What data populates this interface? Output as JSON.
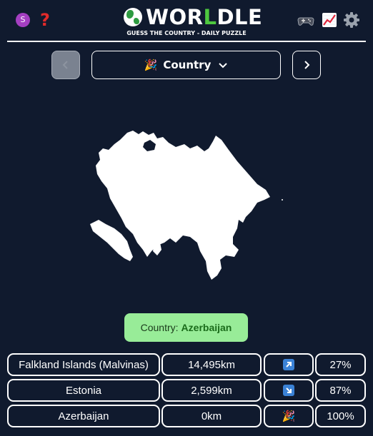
{
  "header": {
    "avatar_letter": "S",
    "help_symbol": "?",
    "logo": {
      "before": "WOR",
      "highlight": "L",
      "after": "DLE"
    },
    "tagline": "GUESS THE COUNTRY - DAILY PUZZLE",
    "icons": [
      "games-icon",
      "stats-icon",
      "settings-icon"
    ],
    "colors": {
      "avatar": "#a43fc1",
      "help": "#e02a2a",
      "logo_highlight": "#4ec83f"
    }
  },
  "nav": {
    "prev_icon": "chevron-left-icon",
    "select": {
      "emoji": "🎉",
      "label": "Country",
      "icon": "chevron-down-icon"
    },
    "next_icon": "chevron-right-icon"
  },
  "answer": {
    "prefix": "Country:",
    "value": "Azerbaijan"
  },
  "guesses": [
    {
      "country": "Falkland Islands (Malvinas)",
      "distance": "14,495km",
      "direction": "arrow-up-right-icon",
      "percent": "27%"
    },
    {
      "country": "Estonia",
      "distance": "2,599km",
      "direction": "arrow-down-right-icon",
      "percent": "87%"
    },
    {
      "country": "Azerbaijan",
      "distance": "0km",
      "direction_emoji": "🎉",
      "percent": "100%"
    }
  ]
}
